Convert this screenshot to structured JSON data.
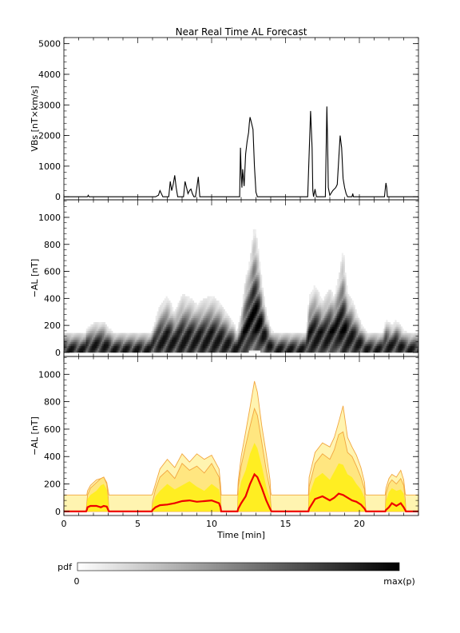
{
  "title": "Near Real Time AL Forecast",
  "xlabel": "Time [min]",
  "xticks": [
    "0",
    "5",
    "10",
    "15",
    "20"
  ],
  "colorbar": {
    "label": "pdf",
    "min_label": "0",
    "max_label": "max(p)"
  },
  "colors": {
    "median": "#ee0000",
    "band_inner": "#ffee22",
    "band_mid": "#ffe680",
    "band_outer": "#fff4b0",
    "band_edge": "#f2a640"
  },
  "chart_data": [
    {
      "type": "line",
      "ylabel": "VBs [nT×km/s]",
      "xlim": [
        0,
        24
      ],
      "ylim": [
        -100,
        5200
      ],
      "yticks": [
        "0",
        "1000",
        "2000",
        "3000",
        "4000",
        "5000"
      ],
      "x": [
        0,
        1.6,
        1.65,
        1.7,
        6.2,
        6.4,
        6.5,
        6.6,
        6.7,
        7.1,
        7.2,
        7.3,
        7.4,
        7.5,
        7.6,
        7.7,
        7.8,
        8.1,
        8.2,
        8.3,
        8.4,
        8.5,
        8.6,
        8.7,
        8.8,
        8.9,
        9.0,
        9.1,
        9.2,
        11.9,
        11.95,
        12.0,
        12.05,
        12.1,
        12.2,
        12.3,
        12.4,
        12.5,
        12.55,
        12.6,
        12.7,
        12.8,
        12.9,
        13.0,
        13.1,
        13.15,
        16.5,
        16.6,
        16.7,
        16.8,
        16.85,
        16.9,
        17.0,
        17.05,
        17.1,
        17.7,
        17.8,
        17.85,
        17.9,
        18.0,
        18.2,
        18.4,
        18.5,
        18.6,
        18.7,
        18.8,
        18.9,
        19.0,
        19.1,
        19.2,
        19.3,
        19.5,
        19.55,
        19.6,
        21.7,
        21.75,
        21.8,
        21.85,
        21.9,
        24
      ],
      "y": [
        0,
        0,
        50,
        0,
        0,
        50,
        200,
        100,
        0,
        0,
        500,
        200,
        400,
        700,
        300,
        0,
        0,
        0,
        500,
        300,
        100,
        200,
        250,
        100,
        0,
        0,
        300,
        650,
        0,
        0,
        1600,
        800,
        300,
        900,
        350,
        1400,
        1800,
        2100,
        2400,
        2600,
        2400,
        2200,
        1000,
        150,
        0,
        0,
        0,
        1400,
        2800,
        1600,
        200,
        0,
        250,
        100,
        0,
        0,
        2950,
        1800,
        300,
        50,
        200,
        300,
        400,
        1200,
        2000,
        1600,
        600,
        300,
        100,
        0,
        0,
        0,
        100,
        0,
        0,
        250,
        450,
        300,
        0,
        0
      ]
    },
    {
      "type": "heatmap",
      "ylabel": "−AL [nT]",
      "xlim": [
        0,
        24
      ],
      "ylim": [
        -30,
        1130
      ],
      "yticks": [
        "0",
        "200",
        "400",
        "600",
        "800",
        "1000"
      ],
      "x": [
        0,
        1.5,
        1.55,
        2.2,
        2.7,
        3.3,
        3.35,
        5.9,
        6.0,
        6.5,
        7.0,
        7.5,
        8.0,
        8.5,
        9.0,
        9.5,
        10.0,
        10.5,
        11.0,
        11.5,
        11.7,
        12.0,
        12.3,
        12.6,
        12.9,
        13.1,
        13.4,
        13.7,
        14.0,
        14.2,
        16.4,
        16.6,
        17.0,
        17.5,
        18.0,
        18.3,
        18.6,
        18.9,
        19.2,
        19.5,
        19.8,
        20.2,
        20.5,
        20.6,
        21.6,
        21.8,
        22.2,
        22.5,
        22.8,
        23.0,
        23.3,
        23.5,
        24
      ],
      "low": [
        0,
        0,
        0,
        0,
        0,
        0,
        0,
        0,
        0,
        0,
        0,
        0,
        0,
        0,
        0,
        0,
        0,
        0,
        0,
        0,
        0,
        0,
        0,
        10,
        20,
        20,
        0,
        0,
        0,
        0,
        0,
        0,
        0,
        0,
        0,
        0,
        0,
        0,
        0,
        0,
        0,
        0,
        0,
        0,
        0,
        0,
        0,
        0,
        0,
        0,
        0,
        0,
        0
      ],
      "high": [
        150,
        150,
        180,
        230,
        230,
        150,
        150,
        150,
        180,
        350,
        420,
        300,
        430,
        410,
        360,
        400,
        420,
        380,
        300,
        220,
        150,
        300,
        560,
        700,
        950,
        820,
        520,
        300,
        180,
        150,
        150,
        420,
        500,
        380,
        480,
        420,
        560,
        770,
        440,
        400,
        300,
        200,
        150,
        150,
        150,
        250,
        200,
        240,
        200,
        160,
        150,
        150,
        150
      ],
      "peak": [
        20,
        20,
        40,
        50,
        50,
        20,
        20,
        20,
        50,
        80,
        80,
        70,
        80,
        80,
        90,
        80,
        90,
        80,
        60,
        40,
        20,
        60,
        140,
        220,
        280,
        240,
        160,
        80,
        40,
        20,
        20,
        90,
        110,
        100,
        120,
        130,
        170,
        140,
        110,
        90,
        70,
        50,
        20,
        20,
        20,
        50,
        40,
        60,
        40,
        30,
        20,
        20,
        20
      ]
    },
    {
      "type": "area",
      "ylabel": "−AL [nT]",
      "xlim": [
        0,
        24
      ],
      "ylim": [
        -30,
        1130
      ],
      "yticks": [
        "0",
        "200",
        "400",
        "600",
        "800",
        "1000"
      ],
      "x": [
        0,
        1.5,
        1.55,
        1.6,
        1.8,
        2.2,
        2.5,
        2.7,
        2.9,
        3.0,
        3.05,
        3.1,
        5.9,
        5.95,
        6.0,
        6.2,
        6.5,
        7.0,
        7.5,
        8.0,
        8.5,
        9.0,
        9.5,
        10.0,
        10.5,
        10.6,
        10.65,
        10.7,
        11.7,
        11.75,
        11.8,
        12.0,
        12.3,
        12.6,
        12.9,
        13.1,
        13.4,
        13.7,
        13.95,
        14.0,
        14.05,
        16.5,
        16.55,
        16.6,
        17.0,
        17.5,
        18.0,
        18.3,
        18.6,
        18.9,
        19.2,
        19.5,
        19.8,
        20.1,
        20.35,
        20.4,
        20.45,
        21.7,
        21.75,
        21.8,
        22.0,
        22.2,
        22.5,
        22.8,
        23.0,
        23.1,
        23.15,
        23.2,
        24
      ],
      "median": [
        0,
        0,
        10,
        30,
        40,
        40,
        30,
        40,
        35,
        10,
        0,
        0,
        0,
        0,
        10,
        30,
        45,
        50,
        60,
        75,
        80,
        70,
        75,
        80,
        60,
        30,
        0,
        0,
        0,
        0,
        20,
        60,
        110,
        200,
        270,
        250,
        170,
        80,
        20,
        10,
        0,
        0,
        0,
        20,
        90,
        110,
        80,
        100,
        130,
        120,
        100,
        80,
        70,
        50,
        20,
        10,
        0,
        0,
        0,
        10,
        30,
        60,
        40,
        60,
        30,
        10,
        0,
        0,
        0
      ],
      "q_inner": [
        0,
        0,
        50,
        90,
        120,
        150,
        190,
        200,
        160,
        80,
        0,
        0,
        0,
        0,
        50,
        110,
        150,
        200,
        160,
        190,
        220,
        180,
        150,
        200,
        160,
        100,
        0,
        0,
        0,
        0,
        120,
        220,
        300,
        420,
        500,
        460,
        330,
        180,
        90,
        40,
        0,
        0,
        0,
        120,
        240,
        280,
        230,
        290,
        350,
        340,
        270,
        250,
        200,
        160,
        100,
        40,
        0,
        0,
        0,
        80,
        140,
        170,
        150,
        160,
        130,
        60,
        0,
        0,
        0
      ],
      "q_mid": [
        0,
        0,
        60,
        120,
        170,
        210,
        240,
        250,
        200,
        100,
        0,
        0,
        0,
        0,
        70,
        160,
        250,
        300,
        240,
        350,
        300,
        330,
        280,
        350,
        250,
        150,
        0,
        0,
        0,
        0,
        180,
        330,
        480,
        620,
        750,
        700,
        500,
        300,
        160,
        60,
        0,
        0,
        0,
        180,
        350,
        420,
        380,
        450,
        560,
        580,
        430,
        400,
        330,
        250,
        160,
        60,
        0,
        0,
        0,
        130,
        200,
        230,
        200,
        240,
        190,
        90,
        0,
        0,
        0
      ],
      "q_outer": [
        120,
        120,
        120,
        150,
        190,
        230,
        240,
        250,
        210,
        150,
        120,
        120,
        120,
        120,
        130,
        200,
        310,
        380,
        320,
        420,
        360,
        420,
        380,
        410,
        310,
        200,
        120,
        120,
        120,
        120,
        220,
        400,
        580,
        760,
        950,
        870,
        620,
        420,
        230,
        140,
        120,
        120,
        120,
        250,
        430,
        500,
        470,
        540,
        650,
        770,
        540,
        470,
        410,
        320,
        210,
        130,
        120,
        120,
        120,
        170,
        240,
        270,
        250,
        300,
        230,
        130,
        120,
        120,
        120
      ]
    }
  ]
}
